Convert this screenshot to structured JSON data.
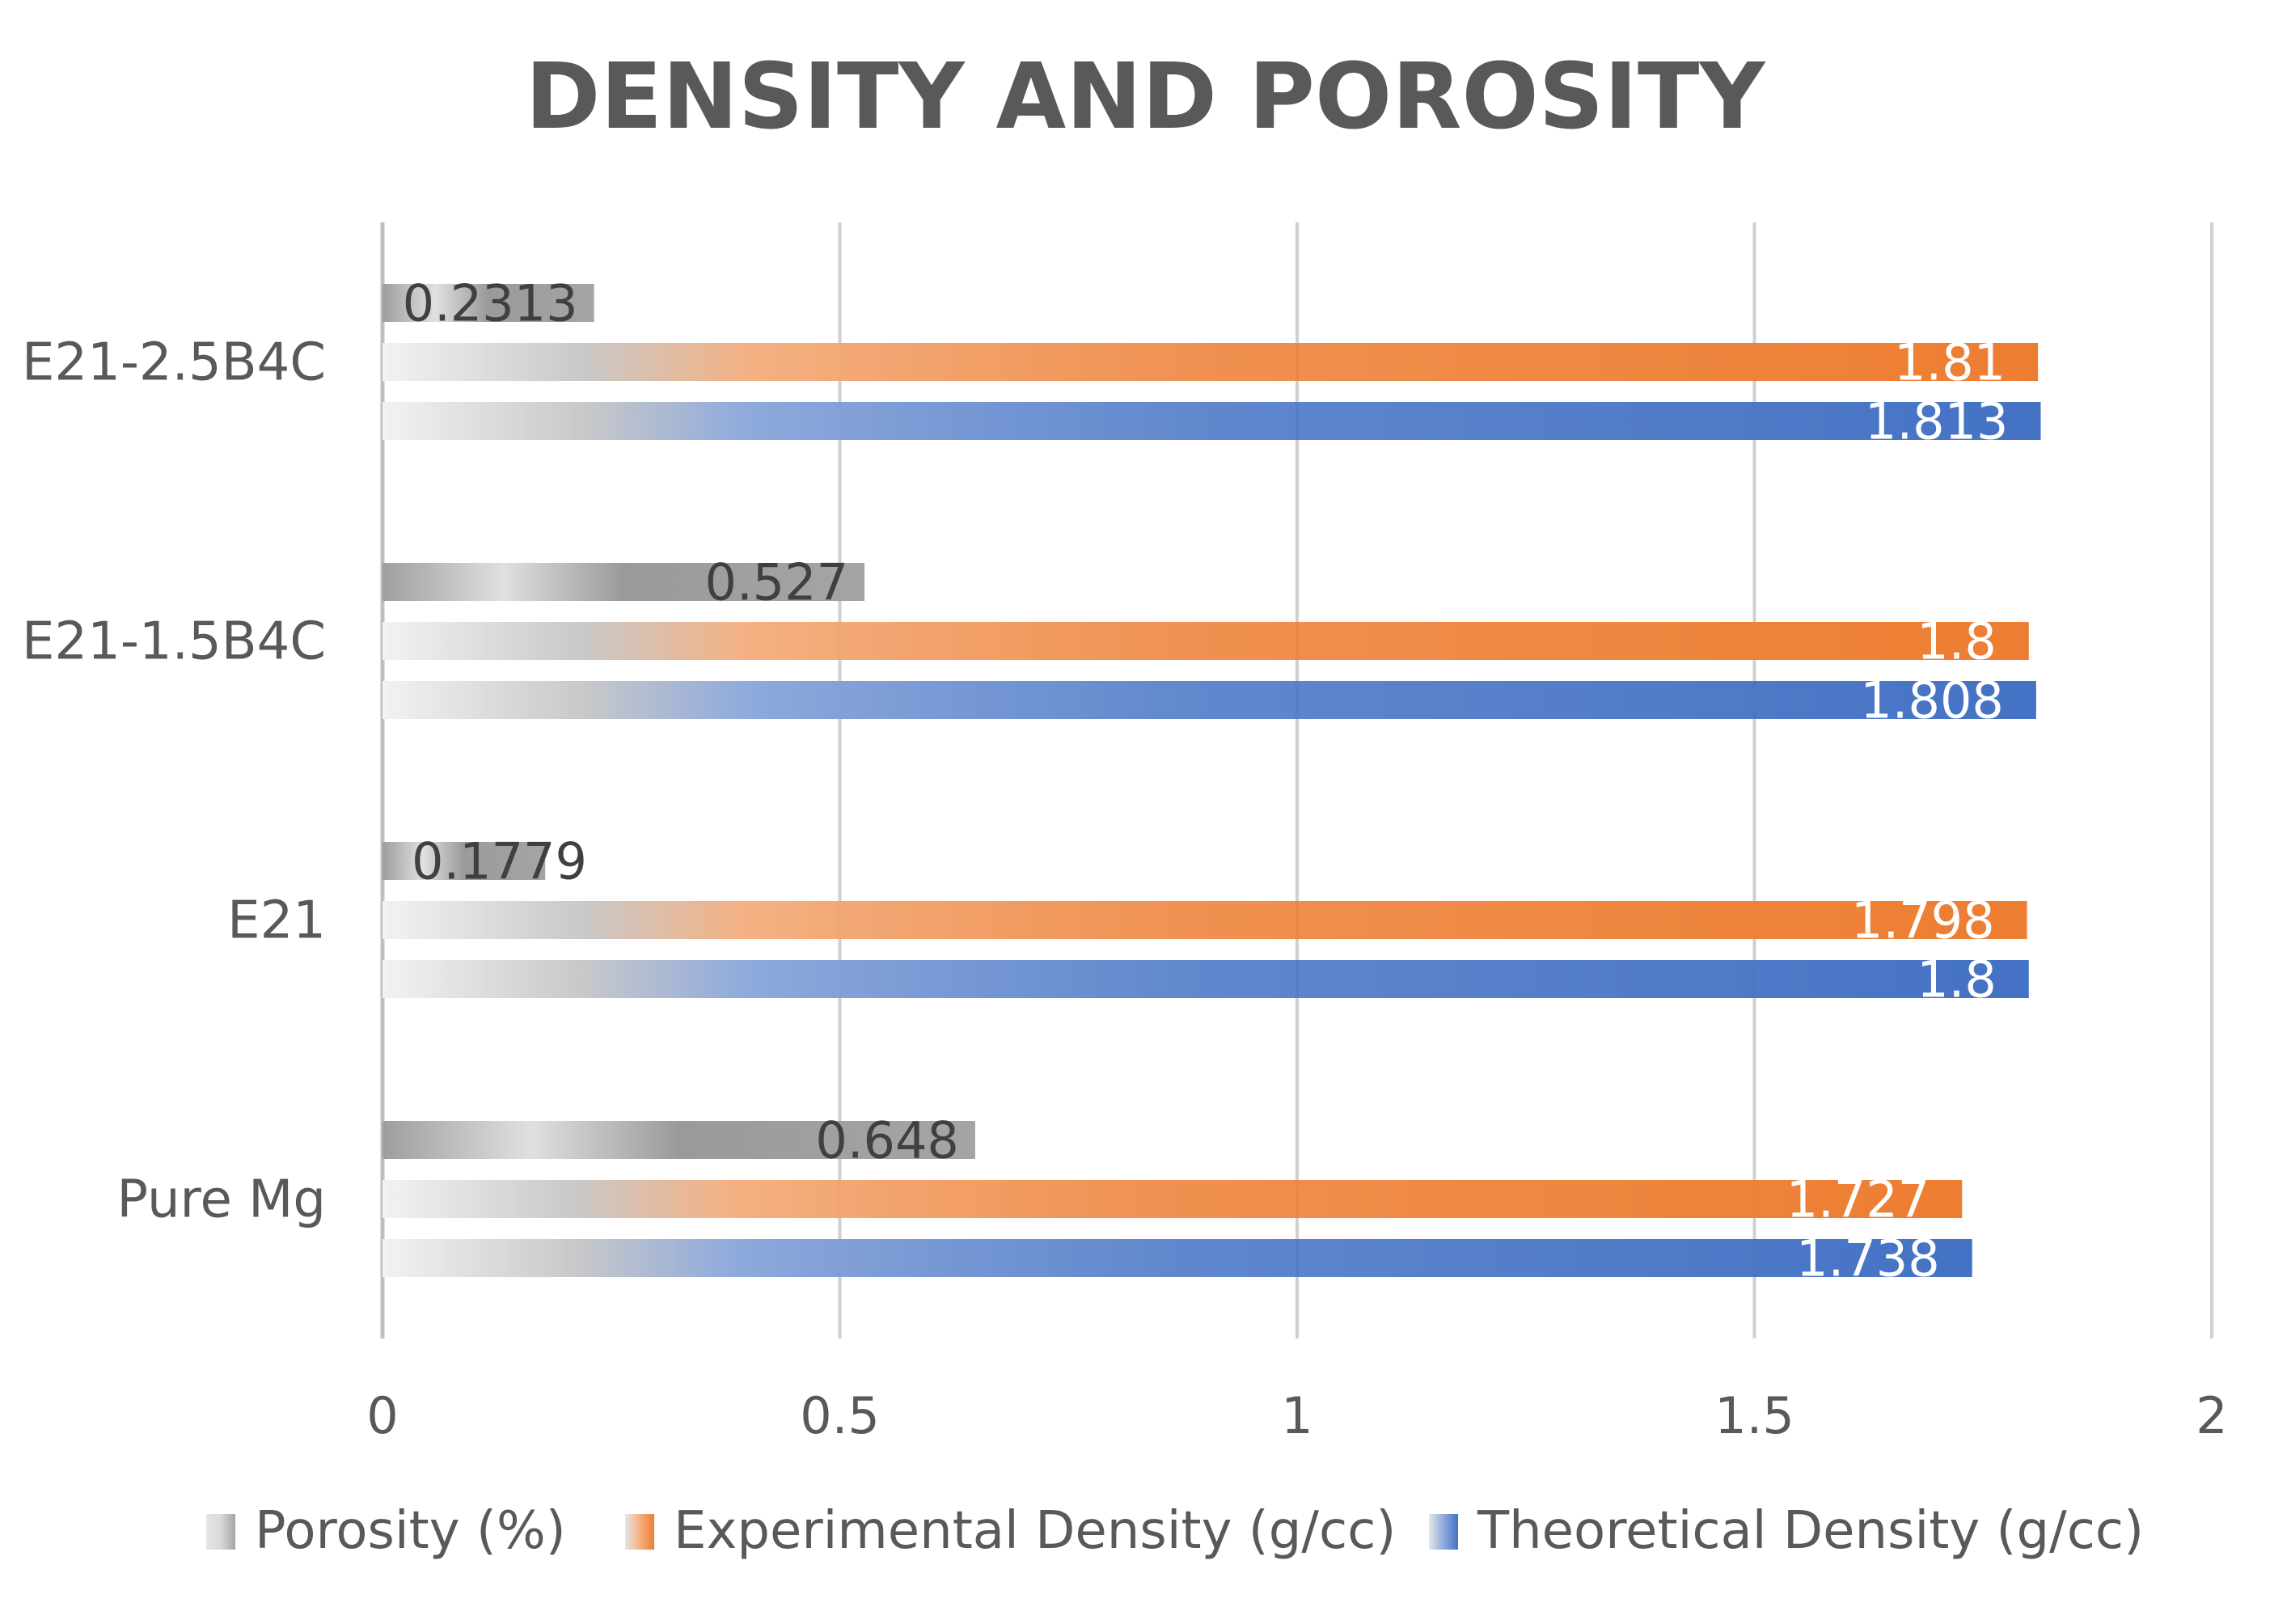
{
  "chart_data": {
    "type": "bar",
    "orientation": "horizontal",
    "title": "DENSITY AND POROSITY",
    "categories": [
      "Pure Mg",
      "E21",
      "E21-1.5B4C",
      "E21-2.5B4C"
    ],
    "series": [
      {
        "name": "Theoretical Density (g/cc)",
        "values": [
          1.738,
          1.8,
          1.808,
          1.813
        ],
        "labels": [
          "1.738",
          "1.8",
          "1.808",
          "1.813"
        ],
        "color": "#4472c4",
        "mid_color": "#8faadc",
        "label_color": "#ffffff"
      },
      {
        "name": "Experimental Density (g/cc)",
        "values": [
          1.727,
          1.798,
          1.8,
          1.81
        ],
        "labels": [
          "1.727",
          "1.798",
          "1.8",
          "1.81"
        ],
        "color": "#ed7d31",
        "mid_color": "#f4b183",
        "label_color": "#ffffff"
      },
      {
        "name": "Porosity (%)",
        "values": [
          0.648,
          0.1779,
          0.527,
          0.2313
        ],
        "labels": [
          "0.648",
          "0.1779",
          "0.527",
          "0.2313"
        ],
        "color": "#a5a5a5",
        "mid_color": "#d9d9d9",
        "label_color": "#404040"
      }
    ],
    "xlim": [
      0,
      2
    ],
    "xticks": [
      0,
      0.5,
      1,
      1.5,
      2
    ],
    "xtick_labels": [
      "0",
      "0.5",
      "1",
      "1.5",
      "2"
    ],
    "grid": true,
    "legend": {
      "position": "bottom",
      "order": [
        "Porosity (%)",
        "Experimental Density (g/cc)",
        "Theoretical Density (g/cc)"
      ]
    },
    "xlabel": "",
    "ylabel": ""
  }
}
